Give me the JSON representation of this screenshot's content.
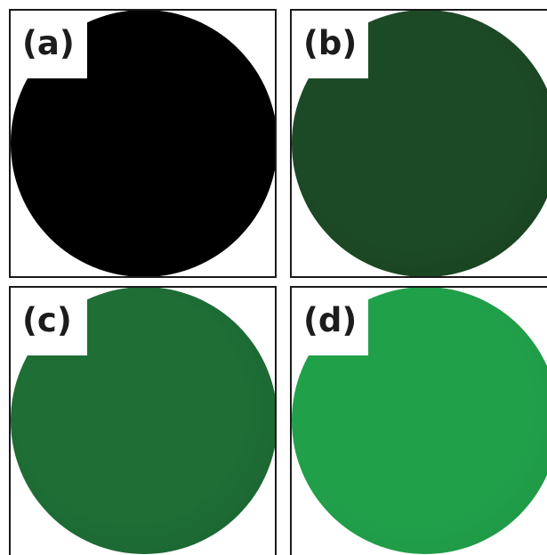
{
  "panels": [
    {
      "id": "a",
      "label": "(a)",
      "color": "#000000",
      "shade": "#000000"
    },
    {
      "id": "b",
      "label": "(b)",
      "color": "#1d4a26",
      "shade": "#163d1e"
    },
    {
      "id": "c",
      "label": "(c)",
      "color": "#1e6e36",
      "shade": "#1a5f2e"
    },
    {
      "id": "d",
      "label": "(d)",
      "color": "#21a04a",
      "shade": "#1d9243"
    }
  ]
}
